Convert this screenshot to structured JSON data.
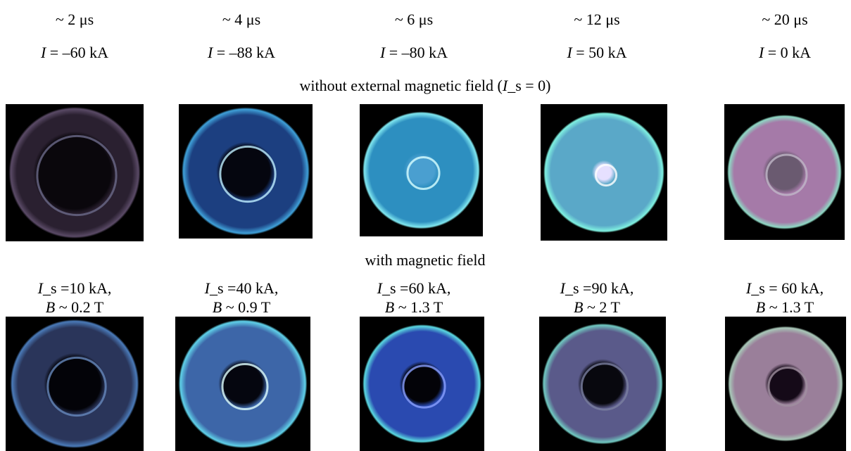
{
  "columns": [
    {
      "time": "~ 2 μs",
      "current": {
        "symbol": "I",
        "text": " = –60 kA"
      },
      "field": {
        "line1": {
          "symbol": "I",
          "text": "_s =10 kA,"
        },
        "line2": {
          "symbol": "B",
          "text": " ~ 0.2 T"
        }
      }
    },
    {
      "time": "~ 4 μs",
      "current": {
        "symbol": "I",
        "text": " = –88 kA"
      },
      "field": {
        "line1": {
          "symbol": "I",
          "text": "_s =40 kA,"
        },
        "line2": {
          "symbol": "B",
          "text": " ~ 0.9 T"
        }
      }
    },
    {
      "time": "~ 6 μs",
      "current": {
        "symbol": "I",
        "text": " = –80 kA"
      },
      "field": {
        "line1": {
          "symbol": "I",
          "text": "_s =60 kA,"
        },
        "line2": {
          "symbol": "B",
          "text": " ~ 1.3 T"
        }
      }
    },
    {
      "time": "~ 12 μs",
      "current": {
        "symbol": "I",
        "text": " = 50 kA"
      },
      "field": {
        "line1": {
          "symbol": "I",
          "text": "_s =90 kA,"
        },
        "line2": {
          "symbol": "B",
          "text": " ~ 2 T"
        }
      }
    },
    {
      "time": "~ 20 μs",
      "current": {
        "symbol": "I",
        "text": " = 0 kA"
      },
      "field": {
        "line1": {
          "symbol": "I",
          "text": "_s = 60 kA,"
        },
        "line2": {
          "symbol": "B",
          "text": " ~ 1.3 T"
        }
      }
    }
  ],
  "captions": {
    "without": {
      "text1": "without external magnetic field (",
      "symbol": "I",
      "text2": "_s = 0)"
    },
    "with": "with magnetic field"
  }
}
